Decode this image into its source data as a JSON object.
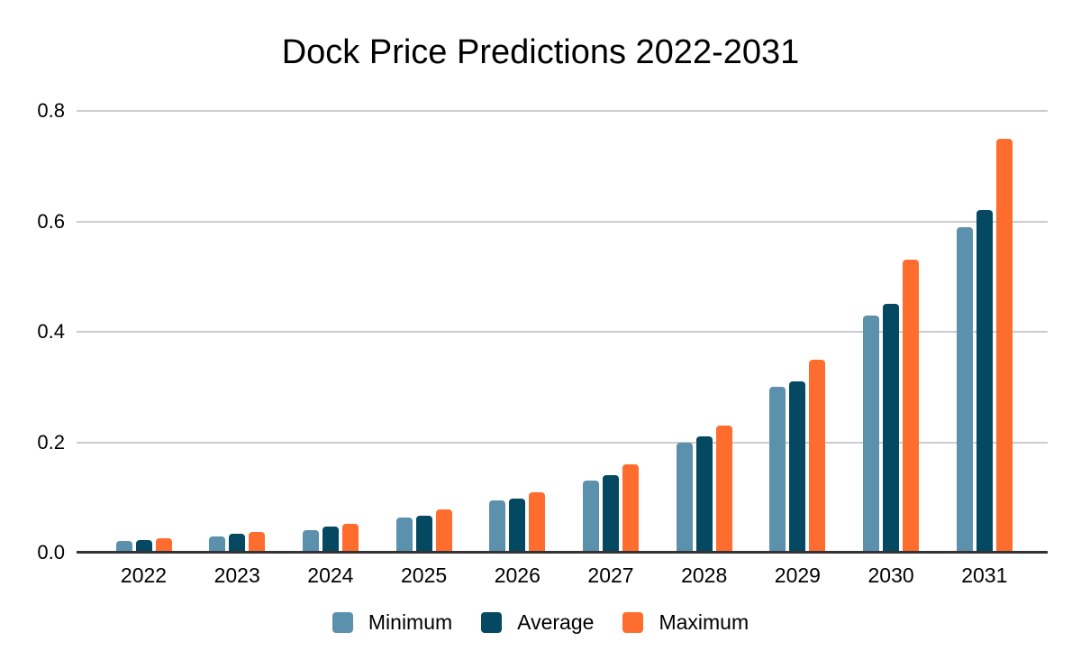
{
  "page": {
    "background": "#ffffff"
  },
  "chart_data": {
    "type": "bar",
    "title": "Dock Price Predictions 2022-2031",
    "categories": [
      "2022",
      "2023",
      "2024",
      "2025",
      "2026",
      "2027",
      "2028",
      "2029",
      "2030",
      "2031"
    ],
    "series": [
      {
        "name": "Minimum",
        "color": "#5b91ad",
        "values": [
          0.021,
          0.03,
          0.041,
          0.063,
          0.095,
          0.13,
          0.2,
          0.3,
          0.43,
          0.59
        ]
      },
      {
        "name": "Average",
        "color": "#044861",
        "values": [
          0.023,
          0.034,
          0.047,
          0.067,
          0.098,
          0.14,
          0.21,
          0.31,
          0.45,
          0.62
        ]
      },
      {
        "name": "Maximum",
        "color": "#ff6d2e",
        "values": [
          0.026,
          0.037,
          0.053,
          0.079,
          0.109,
          0.16,
          0.23,
          0.35,
          0.53,
          0.75
        ]
      }
    ],
    "xlabel": "",
    "ylabel": "",
    "ylim": [
      0,
      0.8
    ],
    "yticks": [
      0,
      0.2,
      0.4,
      0.6,
      0.8
    ],
    "ytick_labels": [
      "0.0",
      "0.2",
      "0.4",
      "0.6",
      "0.8"
    ],
    "grid": true,
    "legend_position": "bottom",
    "colors": {
      "gridline": "#cccccc",
      "axis": "#333333",
      "text": "#000000"
    }
  }
}
